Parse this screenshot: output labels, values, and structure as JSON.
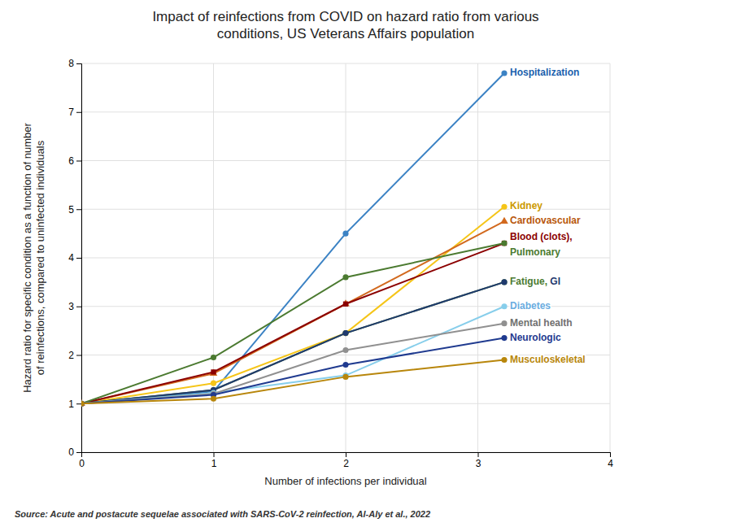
{
  "chart_data": {
    "type": "line",
    "title": [
      "Impact of reinfections from COVID on hazard ratio from various",
      "conditions, US Veterans Affairs population"
    ],
    "x_label": "Number of infections per individual",
    "y_label": [
      "Hazard ratio for specific condition as a function of number",
      "of reinfections, compared to uninfected individuals"
    ],
    "source": "Source: Acute and postacute sequelae associated with SARS-CoV-2 reinfection, Al-Aly et al., 2022",
    "x": [
      0,
      1,
      2,
      3.2
    ],
    "xlim": [
      0,
      4
    ],
    "ylim": [
      0,
      8
    ],
    "xticks": [
      0,
      1,
      2,
      3,
      4
    ],
    "yticks": [
      0,
      1,
      2,
      3,
      4,
      5,
      6,
      7,
      8
    ],
    "grid": true,
    "series": [
      {
        "color": "#3B82C4",
        "marker": "circle",
        "values": [
          1.0,
          1.25,
          4.5,
          7.8
        ]
      },
      {
        "color": "#F5C518",
        "marker": "circle",
        "values": [
          1.0,
          1.42,
          2.45,
          5.05
        ]
      },
      {
        "color": "#D2691E",
        "marker": "triangle",
        "values": [
          1.0,
          1.62,
          3.05,
          4.75
        ]
      },
      {
        "color": "#8B0000",
        "marker": "square",
        "values": [
          1.0,
          1.65,
          3.05,
          4.3
        ]
      },
      {
        "color": "#4B7A30",
        "marker": "circle",
        "values": [
          1.0,
          1.95,
          3.6,
          4.3
        ]
      },
      {
        "color": "#4B7A30",
        "marker": "circle",
        "values": [
          1.0,
          1.28,
          2.45,
          3.5
        ]
      },
      {
        "color": "#1F3A6E",
        "marker": "circle",
        "values": [
          1.0,
          1.28,
          2.45,
          3.5
        ]
      },
      {
        "color": "#87CEEB",
        "marker": "circle",
        "values": [
          1.0,
          1.22,
          1.58,
          3.0
        ]
      },
      {
        "color": "#909090",
        "marker": "circle",
        "values": [
          1.0,
          1.2,
          2.1,
          2.65
        ]
      },
      {
        "color": "#1F3A8F",
        "marker": "circle",
        "values": [
          1.0,
          1.18,
          1.8,
          2.35
        ]
      },
      {
        "color": "#B8860B",
        "marker": "circle",
        "values": [
          1.0,
          1.1,
          1.55,
          1.9
        ]
      }
    ],
    "annotations": [
      {
        "text": "Hospitalization",
        "y": 7.8,
        "color": "#1A5FAD"
      },
      {
        "text": "Kidney",
        "y": 5.05,
        "color": "#CC9900"
      },
      {
        "text": "Cardiovascular",
        "y": 4.75,
        "color": "#B8560A"
      },
      {
        "text": "Blood (clots),",
        "y": 4.42,
        "color": "#8B0000"
      },
      {
        "text": "Pulmonary",
        "y": 4.1,
        "color": "#4B7A30"
      },
      {
        "parts": [
          {
            "text": "Fatigue, ",
            "color": "#4B7A30"
          },
          {
            "text": "GI",
            "color": "#1F3A6E"
          }
        ],
        "y": 3.5
      },
      {
        "text": "Diabetes",
        "y": 3.0,
        "color": "#6AACE0"
      },
      {
        "text": "Mental health",
        "y": 2.65,
        "color": "#707070"
      },
      {
        "text": "Neurologic",
        "y": 2.35,
        "color": "#1F3A8F"
      },
      {
        "text": "Musculoskeletal",
        "y": 1.9,
        "color": "#B8860B"
      }
    ]
  }
}
